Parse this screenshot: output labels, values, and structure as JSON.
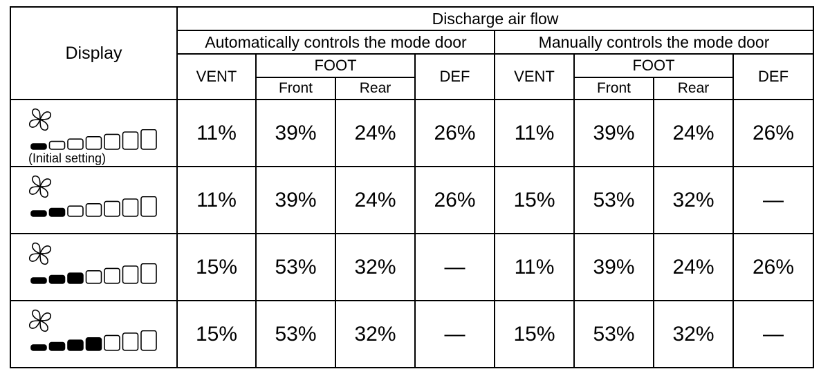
{
  "header": {
    "display": "Display",
    "discharge": "Discharge air flow",
    "auto_mode": "Automatically controls the mode door",
    "manual_mode": "Manually controls the mode door",
    "vent": "VENT",
    "foot": "FOOT",
    "def": "DEF",
    "front": "Front",
    "rear": "Rear"
  },
  "rows": [
    {
      "fan_level": 1,
      "caption": "(Initial setting)",
      "auto": {
        "vent": "11%",
        "front": "39%",
        "rear": "24%",
        "def": "26%"
      },
      "manual": {
        "vent": "11%",
        "front": "39%",
        "rear": "24%",
        "def": "26%"
      }
    },
    {
      "fan_level": 2,
      "caption": "",
      "auto": {
        "vent": "11%",
        "front": "39%",
        "rear": "24%",
        "def": "26%"
      },
      "manual": {
        "vent": "15%",
        "front": "53%",
        "rear": "32%",
        "def": "—"
      }
    },
    {
      "fan_level": 3,
      "caption": "",
      "auto": {
        "vent": "15%",
        "front": "53%",
        "rear": "32%",
        "def": "—"
      },
      "manual": {
        "vent": "11%",
        "front": "39%",
        "rear": "24%",
        "def": "26%"
      }
    },
    {
      "fan_level": 4,
      "caption": "",
      "auto": {
        "vent": "15%",
        "front": "53%",
        "rear": "32%",
        "def": "—"
      },
      "manual": {
        "vent": "15%",
        "front": "53%",
        "rear": "32%",
        "def": "—"
      }
    }
  ],
  "icons": {
    "fan": "fan-icon",
    "bars": "fan-speed-bars-icon"
  },
  "fan_bar_total": 7
}
